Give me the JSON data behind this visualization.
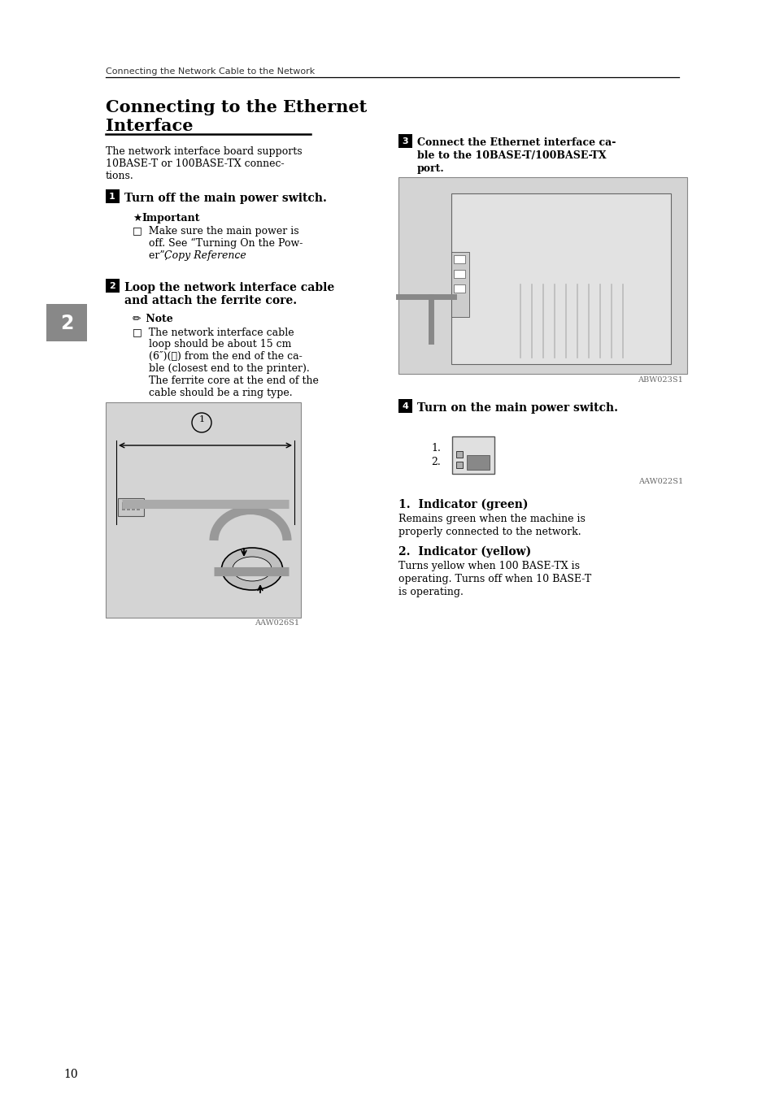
{
  "page_header": "Connecting the Network Cable to the Network",
  "section_title_line1": "Connecting to the Ethernet",
  "section_title_line2": "Interface",
  "intro_line1": "The network interface board supports",
  "intro_line2": "10BASE-T or 100BASE-TX connec-",
  "intro_line3": "tions.",
  "chapter_num": "2",
  "step1_text": "Turn off the main power switch.",
  "important_label": "Important",
  "important_b1": "□  Make sure the main power is",
  "important_b2": "     off. See “Turning On the Pow-",
  "important_b3_a": "     er”, ",
  "important_b3_b": "Copy Reference",
  "important_b3_c": ".",
  "step2_line1": "Loop the network interface cable",
  "step2_line2": "and attach the ferrite core.",
  "note_label": "Note",
  "note_b1": "□  The network interface cable",
  "note_b2": "     loop should be about 15 cm",
  "note_b3": "     (6″)(①) from the end of the ca-",
  "note_b4": "     ble (closest end to the printer).",
  "note_b5": "     The ferrite core at the end of the",
  "note_b6": "     cable should be a ring type.",
  "img1_caption": "AAW026S1",
  "step3_line1": "Connect the Ethernet interface ca-",
  "step3_line2": "ble to the 10BASE-T/100BASE-TX",
  "step3_line3": "port.",
  "img2_caption": "ABW023S1",
  "step4_text": "Turn on the main power switch.",
  "img3_caption": "AAW022S1",
  "ind1_title": "1.  Indicator (green)",
  "ind1_text1": "Remains green when the machine is",
  "ind1_text2": "properly connected to the network.",
  "ind2_title": "2.  Indicator (yellow)",
  "ind2_text1": "Turns yellow when 100 BASE-TX is",
  "ind2_text2": "operating. Turns off when 10 BASE-T",
  "ind2_text3": "is operating.",
  "page_num": "10",
  "white": "#ffffff",
  "black": "#000000",
  "gray_bg": "#d4d4d4",
  "sidebar_color": "#888888",
  "caption_color": "#666666"
}
